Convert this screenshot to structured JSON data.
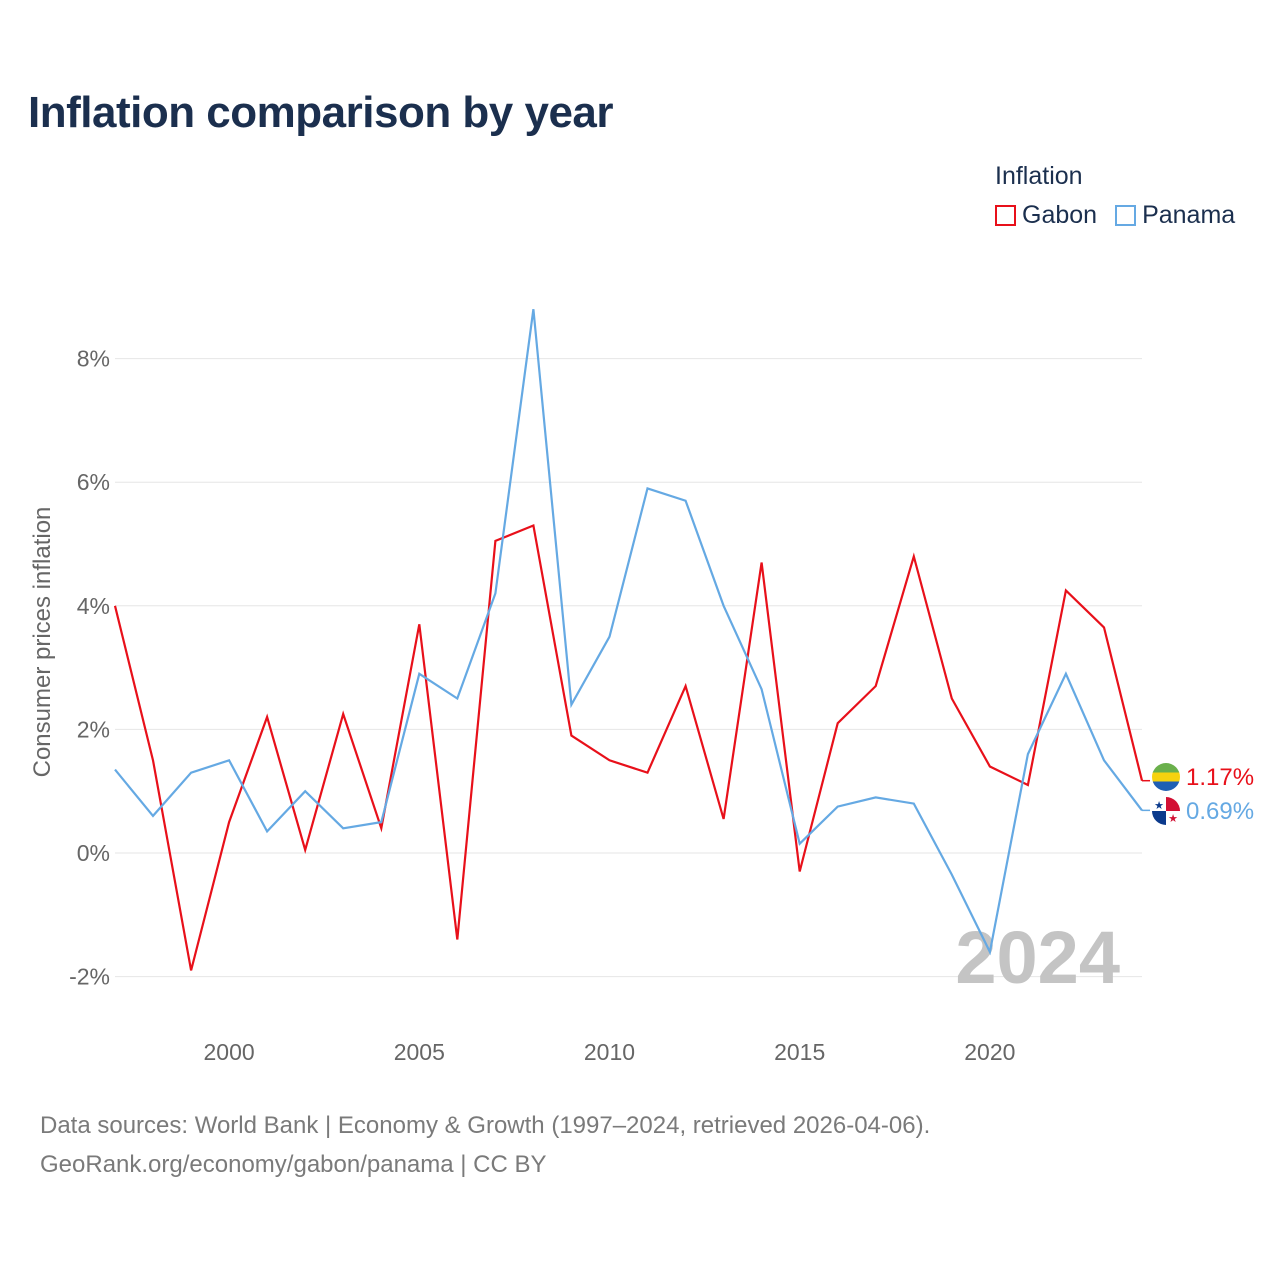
{
  "title": "Inflation comparison by year",
  "legend": {
    "title": "Inflation",
    "items": [
      {
        "name": "Gabon",
        "color": "#e8101a"
      },
      {
        "name": "Panama",
        "color": "#65a9e3"
      }
    ]
  },
  "footer": {
    "line1": "Data sources: World Bank | Economy & Growth (1997–2024, retrieved 2026-04-06).",
    "line2": "GeoRank.org/economy/gabon/panama | CC BY"
  },
  "chart_data": {
    "type": "line",
    "title": "Inflation comparison by year",
    "xlabel": "",
    "ylabel": "Consumer prices inflation",
    "x": [
      1997,
      1998,
      1999,
      2000,
      2001,
      2002,
      2003,
      2004,
      2005,
      2006,
      2007,
      2008,
      2009,
      2010,
      2011,
      2012,
      2013,
      2014,
      2015,
      2016,
      2017,
      2018,
      2019,
      2020,
      2021,
      2022,
      2023,
      2024
    ],
    "xticks": [
      2000,
      2005,
      2010,
      2015,
      2020
    ],
    "xtick_labels": [
      "2000",
      "2005",
      "2010",
      "2015",
      "2020"
    ],
    "yticks": [
      -2,
      0,
      2,
      4,
      6,
      8
    ],
    "ytick_labels": [
      "-2%",
      "0%",
      "2%",
      "4%",
      "6%",
      "8%"
    ],
    "xlim": [
      1997,
      2024
    ],
    "ylim": [
      -2.6,
      9.5
    ],
    "grid": true,
    "watermark": "2024",
    "series": [
      {
        "name": "Gabon",
        "color": "#e8101a",
        "values": [
          4.0,
          1.5,
          -1.9,
          0.5,
          2.2,
          0.05,
          2.25,
          0.4,
          3.7,
          -1.4,
          5.05,
          5.3,
          1.9,
          1.5,
          1.3,
          2.7,
          0.55,
          4.7,
          -0.3,
          2.1,
          2.7,
          4.8,
          2.5,
          1.4,
          1.1,
          4.25,
          3.65,
          1.17
        ],
        "end_label": "1.17%"
      },
      {
        "name": "Panama",
        "color": "#65a9e3",
        "values": [
          1.35,
          0.6,
          1.3,
          1.5,
          0.35,
          1.0,
          0.4,
          0.5,
          2.9,
          2.5,
          4.2,
          8.8,
          2.4,
          3.5,
          5.9,
          5.7,
          4.0,
          2.65,
          0.15,
          0.75,
          0.9,
          0.8,
          -0.35,
          -1.6,
          1.6,
          2.9,
          1.5,
          0.69
        ],
        "end_label": "0.69%"
      }
    ]
  }
}
